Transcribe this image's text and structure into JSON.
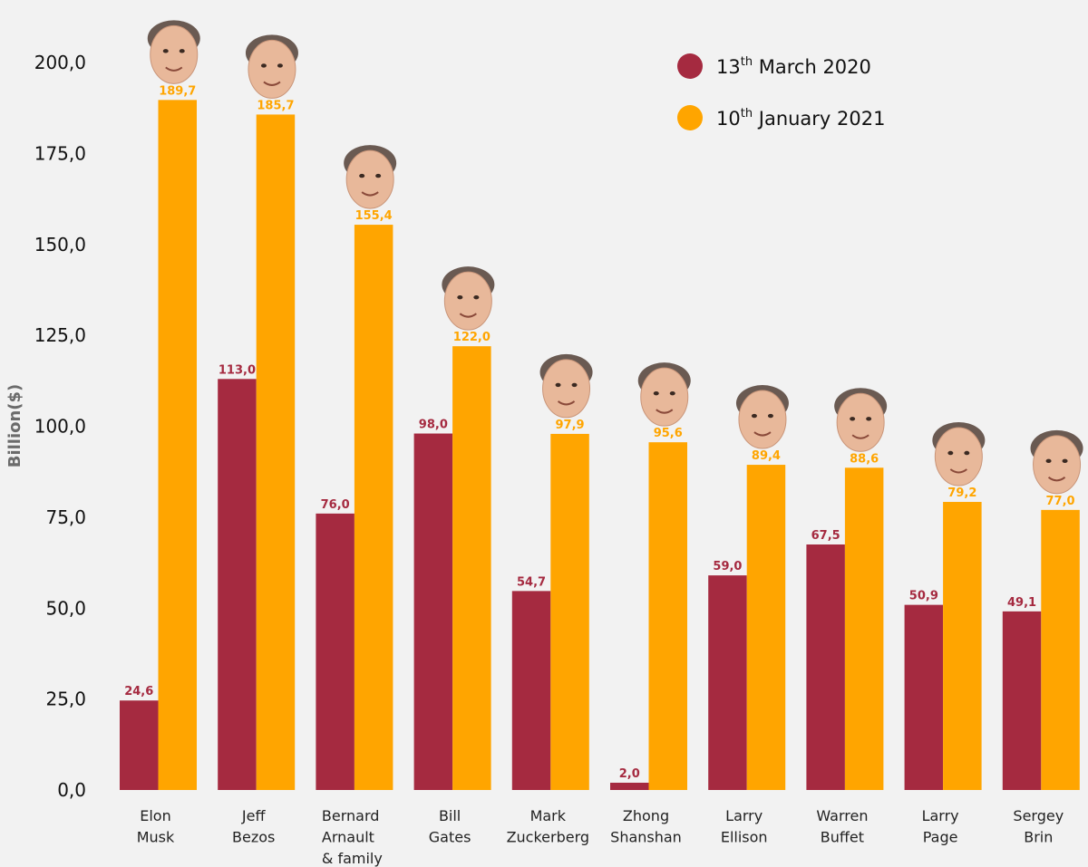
{
  "chart_data": {
    "type": "bar",
    "title": "",
    "xlabel": "",
    "ylabel": "Billion($)",
    "ylim": [
      0,
      200
    ],
    "yticks": [
      "0,0",
      "25,0",
      "50,0",
      "75,0",
      "100,0",
      "125,0",
      "150,0",
      "175,0",
      "200,0"
    ],
    "ytick_values": [
      0,
      25,
      50,
      75,
      100,
      125,
      150,
      175,
      200
    ],
    "grid": false,
    "legend_position": "top-right",
    "categories": [
      [
        "Elon",
        "Musk"
      ],
      [
        "Jeff",
        "Bezos"
      ],
      [
        "Bernard",
        "Arnault",
        "& family"
      ],
      [
        "Bill",
        "Gates"
      ],
      [
        "Mark",
        "Zuckerberg"
      ],
      [
        "Zhong",
        "Shanshan"
      ],
      [
        "Larry",
        "Ellison"
      ],
      [
        "Warren",
        "Buffet"
      ],
      [
        "Larry",
        "Page"
      ],
      [
        "Sergey",
        "Brin"
      ]
    ],
    "series": [
      {
        "name": "13th March 2020",
        "legend_main": "13",
        "legend_sup": "th",
        "legend_rest": " March 2020",
        "color": "#a52a40",
        "values": [
          24.6,
          113.0,
          76.0,
          98.0,
          54.7,
          2.0,
          59.0,
          67.5,
          50.9,
          49.1
        ],
        "labels": [
          "24,6",
          "113,0",
          "76,0",
          "98,0",
          "54,7",
          "2,0",
          "59,0",
          "67,5",
          "50,9",
          "49,1"
        ]
      },
      {
        "name": "10th January 2021",
        "legend_main": "10",
        "legend_sup": "th",
        "legend_rest": " January 2021",
        "color": "#ffa500",
        "values": [
          189.7,
          185.7,
          155.4,
          122.0,
          97.9,
          95.6,
          89.4,
          88.6,
          79.2,
          77.0
        ],
        "labels": [
          "189,7",
          "185,7",
          "155,4",
          "122,0",
          "97,9",
          "95,6",
          "89,4",
          "88,6",
          "79,2",
          "77,0"
        ]
      }
    ],
    "annotations": "portrait-icon above each 2021 bar"
  }
}
